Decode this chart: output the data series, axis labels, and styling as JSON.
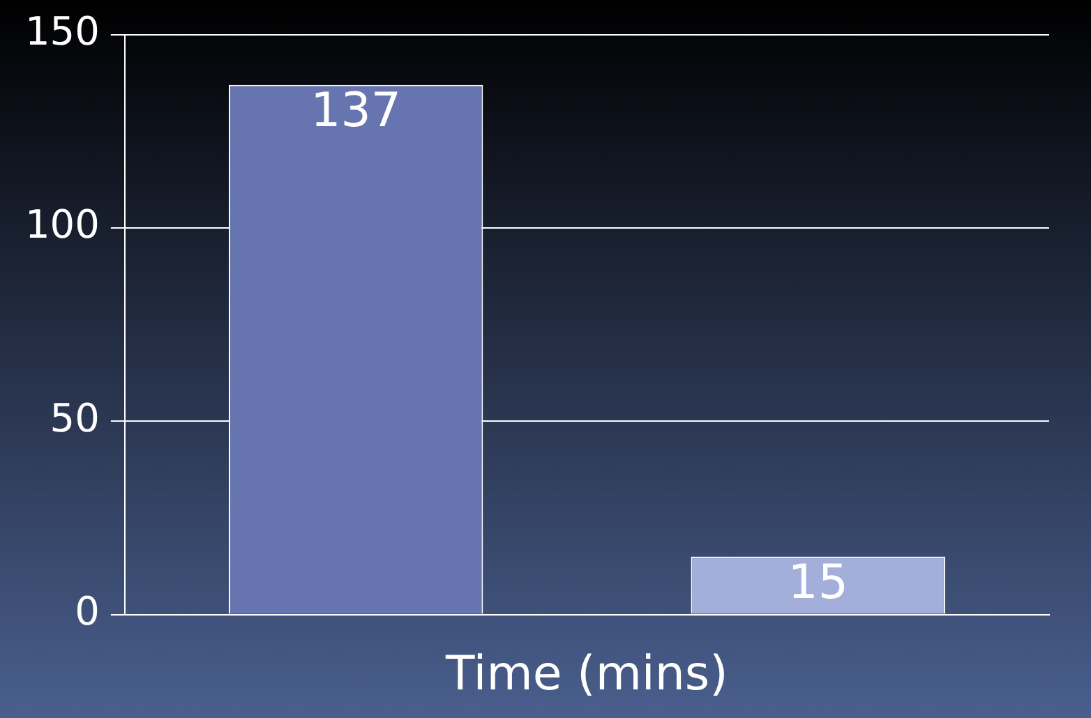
{
  "chart_data": {
    "type": "bar",
    "xlabel": "Time (mins)",
    "categories": [
      null
    ],
    "series": [
      {
        "color": "#6675b0",
        "values": [
          137
        ]
      },
      {
        "color": "#a3aedb",
        "values": [
          15
        ]
      }
    ],
    "ylim": [
      0,
      150
    ],
    "yticks": [
      0,
      50,
      100,
      150
    ],
    "grid": "y",
    "data_labels": true,
    "legend": false
  }
}
